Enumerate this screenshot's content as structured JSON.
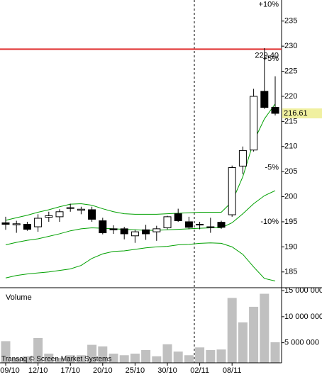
{
  "chart_data": [
    {
      "type": "candlestick",
      "categories": [
        "09/10",
        null,
        null,
        "12/10",
        null,
        null,
        "17/10",
        null,
        null,
        "20/10",
        null,
        null,
        "25/10",
        null,
        null,
        "30/10",
        null,
        null,
        "02/11",
        null,
        null,
        "08/11",
        null,
        null,
        null,
        null
      ],
      "open": [
        194.8,
        194.4,
        194.5,
        194.0,
        195.9,
        196.0,
        197.8,
        197.3,
        197.4,
        195.2,
        193.6,
        193.6,
        192.2,
        193.4,
        193.0,
        193.8,
        196.6,
        195.0,
        194.5,
        194.0,
        194.9,
        196.4,
        206.1,
        209.3,
        221.0,
        217.8
      ],
      "high": [
        196.0,
        195.2,
        195.0,
        196.5,
        197.0,
        197.5,
        198.6,
        198.0,
        198.0,
        195.8,
        194.3,
        194.0,
        193.4,
        194.4,
        194.2,
        196.2,
        197.6,
        196.0,
        195.0,
        195.8,
        195.2,
        206.2,
        210.0,
        221.5,
        229.6,
        224.0
      ],
      "low": [
        193.4,
        192.8,
        193.2,
        193.0,
        195.0,
        195.0,
        197.0,
        196.5,
        195.0,
        192.5,
        192.6,
        191.5,
        190.8,
        191.4,
        191.2,
        193.5,
        195.0,
        193.5,
        193.5,
        192.8,
        193.6,
        196.0,
        204.5,
        209.0,
        217.5,
        216.2
      ],
      "close": [
        194.5,
        194.6,
        193.5,
        195.7,
        196.2,
        197.0,
        197.8,
        197.5,
        195.5,
        192.8,
        193.4,
        192.6,
        193.0,
        192.6,
        193.6,
        196.0,
        195.2,
        193.9,
        194.4,
        194.0,
        193.9,
        205.8,
        209.2,
        220.0,
        217.8,
        216.61
      ],
      "up_color": "#ffffff",
      "down_color": "#000000",
      "bands": [
        {
          "color": "#00a000",
          "values": [
            195.3,
            195.8,
            196.3,
            196.9,
            197.4,
            198.0,
            198.5,
            198.6,
            198.3,
            197.6,
            197.0,
            196.6,
            196.5,
            196.5,
            196.5,
            196.6,
            196.7,
            196.8,
            196.9,
            196.9,
            196.9,
            199.0,
            204.0,
            211.0,
            215.5,
            218.5
          ]
        },
        {
          "color": "#00a000",
          "values": [
            190.4,
            190.9,
            191.3,
            191.6,
            192.1,
            192.6,
            193.2,
            193.6,
            193.8,
            193.7,
            193.6,
            193.5,
            193.4,
            193.3,
            193.3,
            193.4,
            193.5,
            193.6,
            193.7,
            193.8,
            193.8,
            194.8,
            196.6,
            198.6,
            200.2,
            201.2
          ]
        },
        {
          "color": "#00a000",
          "values": [
            183.8,
            184.3,
            184.6,
            184.8,
            185.0,
            185.3,
            185.6,
            186.3,
            187.7,
            188.6,
            189.1,
            189.2,
            189.5,
            189.8,
            190.0,
            190.1,
            190.4,
            190.5,
            190.7,
            190.8,
            190.7,
            190.0,
            188.5,
            186.0,
            183.7,
            183.2
          ]
        }
      ],
      "hline": {
        "value": 229.4,
        "label": "229.40",
        "color": "#e03030",
        "label_color": "#d08040"
      },
      "last_price": 216.61,
      "last_price_bg": "#f0f0a0",
      "percent_levels": [
        {
          "value": 10,
          "label": "+10%",
          "color": "#00a000"
        },
        {
          "value": 5,
          "label": "+5%",
          "color": "#00a000"
        },
        {
          "value": -5,
          "label": "-5%",
          "color": "#e03030"
        },
        {
          "value": -10,
          "label": "-10%",
          "color": "#e03030"
        }
      ],
      "ylim": [
        182,
        239.2
      ],
      "yticks": [
        185,
        190,
        195,
        200,
        205,
        210,
        215,
        220,
        225,
        230,
        235
      ]
    },
    {
      "type": "bar",
      "title": "Volume",
      "color": "#c0c0c0",
      "values": [
        5300000,
        2100000,
        2400000,
        5900000,
        2900000,
        2100000,
        2600000,
        2600000,
        4600000,
        4300000,
        2900000,
        2600000,
        2900000,
        3600000,
        2400000,
        4700000,
        3300000,
        2600000,
        4100000,
        3600000,
        3700000,
        13600000,
        8900000,
        11900000,
        14400000,
        5100000
      ],
      "ylim": [
        1140000,
        15290000
      ],
      "yticks": [
        {
          "value": 5000000,
          "label": "5 000 000"
        },
        {
          "value": 10000000,
          "label": "10 000 000"
        },
        {
          "value": 15000000,
          "label": "15 000 000"
        }
      ]
    }
  ],
  "watermark": "Transaq © Screen Market Systems"
}
